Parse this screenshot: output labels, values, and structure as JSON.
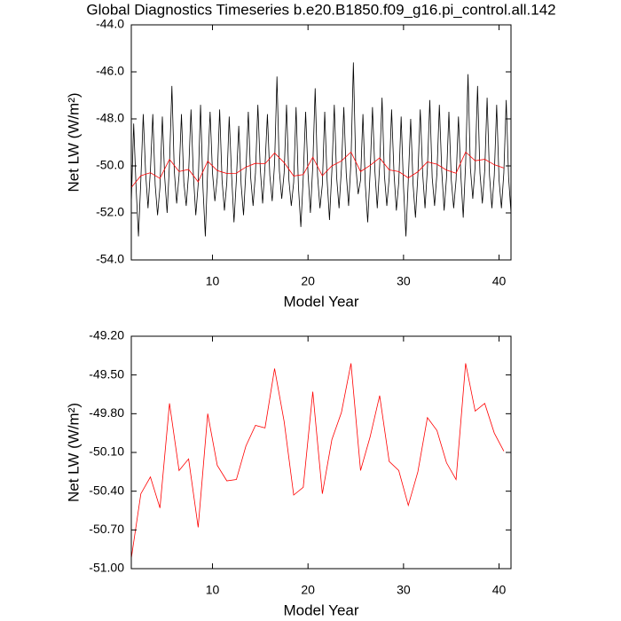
{
  "chart_data": [
    {
      "type": "line",
      "title": "Global Diagnostics Timeseries b.e20.B1850.f09_g16.pi_control.all.142",
      "xlabel": "Model Year",
      "ylabel": "Net LW (W/m²)",
      "xlim": [
        1.5,
        41.25
      ],
      "ylim": [
        -54,
        -44
      ],
      "xticks": [
        10,
        20,
        30,
        40
      ],
      "yticks": [
        {
          "value": -54,
          "label": "-54.0"
        },
        {
          "value": -52,
          "label": "-52.0"
        },
        {
          "value": -50,
          "label": "-50.0"
        },
        {
          "value": -48,
          "label": "-48.0"
        },
        {
          "value": -46,
          "label": "-46.0"
        },
        {
          "value": -44,
          "label": "-44.0"
        }
      ],
      "series": [
        {
          "color": "#000000",
          "x": [
            1.5,
            1.75,
            2,
            2.25,
            2.5,
            2.75,
            3,
            3.25,
            3.5,
            3.75,
            4,
            4.25,
            4.5,
            4.75,
            5,
            5.25,
            5.5,
            5.75,
            6,
            6.25,
            6.5,
            6.75,
            7,
            7.25,
            7.5,
            7.75,
            8,
            8.25,
            8.5,
            8.75,
            9,
            9.25,
            9.5,
            9.75,
            10,
            10.25,
            10.5,
            10.75,
            11,
            11.25,
            11.5,
            11.75,
            12,
            12.25,
            12.5,
            12.75,
            13,
            13.25,
            13.5,
            13.75,
            14,
            14.25,
            14.5,
            14.75,
            15,
            15.25,
            15.5,
            15.75,
            16,
            16.25,
            16.5,
            16.75,
            17,
            17.25,
            17.5,
            17.75,
            18,
            18.25,
            18.5,
            18.75,
            19,
            19.25,
            19.5,
            19.75,
            20,
            20.25,
            20.5,
            20.75,
            21,
            21.25,
            21.5,
            21.75,
            22,
            22.25,
            22.5,
            22.75,
            23,
            23.25,
            23.5,
            23.75,
            24,
            24.25,
            24.5,
            24.75,
            25,
            25.25,
            25.5,
            25.75,
            26,
            26.25,
            26.5,
            26.75,
            27,
            27.25,
            27.5,
            27.75,
            28,
            28.25,
            28.5,
            28.75,
            29,
            29.25,
            29.5,
            29.75,
            30,
            30.25,
            30.5,
            30.75,
            31,
            31.25,
            31.5,
            31.75,
            32,
            32.25,
            32.5,
            32.75,
            33,
            33.25,
            33.5,
            33.75,
            34,
            34.25,
            34.5,
            34.75,
            35,
            35.25,
            35.5,
            35.75,
            36,
            36.25,
            36.5,
            36.75,
            37,
            37.25,
            37.5,
            37.75,
            38,
            38.25,
            38.5,
            38.75,
            39,
            39.25,
            39.5,
            39.75,
            40,
            40.25,
            40.5,
            40.75,
            41,
            41.25
          ],
          "values": [
            -51.6,
            -48.2,
            -50.9,
            -53.0,
            -50.6,
            -47.8,
            -50.3,
            -51.8,
            -50.2,
            -47.8,
            -50.8,
            -52.1,
            -50.9,
            -47.9,
            -50.5,
            -52.0,
            -49.9,
            -46.6,
            -50.2,
            -51.6,
            -50.4,
            -47.8,
            -50.7,
            -51.7,
            -50.3,
            -47.6,
            -50.4,
            -52.1,
            -50.8,
            -47.4,
            -50.9,
            -53.0,
            -50.1,
            -47.7,
            -50.3,
            -51.5,
            -50.5,
            -47.6,
            -50.6,
            -51.9,
            -50.7,
            -47.9,
            -50.4,
            -52.4,
            -50.6,
            -48.3,
            -50.8,
            -52.1,
            -50.2,
            -47.7,
            -50.5,
            -51.7,
            -50.3,
            -47.4,
            -50.1,
            -51.6,
            -50.0,
            -47.8,
            -50.4,
            -51.5,
            -49.9,
            -46.2,
            -50.2,
            -51.4,
            -50.3,
            -47.4,
            -50.6,
            -51.7,
            -50.7,
            -47.5,
            -50.9,
            -52.6,
            -50.5,
            -47.7,
            -50.3,
            -52.0,
            -50.0,
            -46.7,
            -50.4,
            -51.8,
            -50.8,
            -47.7,
            -50.6,
            -52.3,
            -50.2,
            -47.4,
            -50.5,
            -51.8,
            -50.1,
            -47.5,
            -50.3,
            -51.7,
            -49.8,
            -45.6,
            -50.0,
            -51.2,
            -50.6,
            -47.8,
            -50.8,
            -52.4,
            -50.3,
            -47.5,
            -50.2,
            -51.8,
            -50.0,
            -47.1,
            -50.4,
            -51.7,
            -50.5,
            -47.6,
            -50.3,
            -51.9,
            -50.7,
            -47.9,
            -50.9,
            -53.0,
            -50.6,
            -48.0,
            -50.8,
            -52.2,
            -50.4,
            -47.6,
            -50.3,
            -51.8,
            -50.1,
            -47.2,
            -50.5,
            -51.7,
            -50.3,
            -47.4,
            -50.2,
            -51.9,
            -50.5,
            -47.7,
            -50.6,
            -51.8,
            -50.6,
            -47.9,
            -50.4,
            -52.2,
            -49.9,
            -46.1,
            -50.1,
            -51.4,
            -50.0,
            -46.6,
            -50.3,
            -51.6,
            -50.2,
            -47.1,
            -50.4,
            -51.8,
            -50.4,
            -47.4,
            -50.6,
            -51.8,
            -50.3,
            -47.2,
            -50.5,
            -52.0
          ]
        },
        {
          "color": "#ff0000",
          "x": [
            1.5,
            2.5,
            3.5,
            4.5,
            5.5,
            6.5,
            7.5,
            8.5,
            9.5,
            10.5,
            11.5,
            12.5,
            13.5,
            14.5,
            15.5,
            16.5,
            17.5,
            18.5,
            19.5,
            20.5,
            21.5,
            22.5,
            23.5,
            24.5,
            25.5,
            26.5,
            27.5,
            28.5,
            29.5,
            30.5,
            31.5,
            32.5,
            33.5,
            34.5,
            35.5,
            36.5,
            37.5,
            38.5,
            39.5,
            40.5
          ],
          "values": [
            -50.92,
            -50.42,
            -50.29,
            -50.53,
            -49.72,
            -50.24,
            -50.15,
            -50.68,
            -49.8,
            -50.2,
            -50.32,
            -50.31,
            -50.05,
            -49.89,
            -49.91,
            -49.45,
            -49.86,
            -50.43,
            -50.37,
            -49.63,
            -50.42,
            -50.0,
            -49.79,
            -49.41,
            -50.24,
            -49.98,
            -49.66,
            -50.17,
            -50.24,
            -50.51,
            -50.25,
            -49.83,
            -49.93,
            -50.18,
            -50.31,
            -49.41,
            -49.78,
            -49.72,
            -49.95,
            -50.09
          ]
        }
      ]
    },
    {
      "type": "line",
      "xlabel": "Model Year",
      "ylabel": "Net LW (W/m²)",
      "xlim": [
        1.5,
        41.25
      ],
      "ylim": [
        -51,
        -49.2
      ],
      "xticks": [
        10,
        20,
        30,
        40
      ],
      "yticks": [
        {
          "value": -51,
          "label": "-51.00"
        },
        {
          "value": -50.7,
          "label": "-50.70"
        },
        {
          "value": -50.4,
          "label": "-50.40"
        },
        {
          "value": -50.1,
          "label": "-50.10"
        },
        {
          "value": -49.8,
          "label": "-49.80"
        },
        {
          "value": -49.5,
          "label": "-49.50"
        },
        {
          "value": -49.2,
          "label": "-49.20"
        }
      ],
      "series": [
        {
          "color": "#ff0000",
          "x": [
            1.5,
            2.5,
            3.5,
            4.5,
            5.5,
            6.5,
            7.5,
            8.5,
            9.5,
            10.5,
            11.5,
            12.5,
            13.5,
            14.5,
            15.5,
            16.5,
            17.5,
            18.5,
            19.5,
            20.5,
            21.5,
            22.5,
            23.5,
            24.5,
            25.5,
            26.5,
            27.5,
            28.5,
            29.5,
            30.5,
            31.5,
            32.5,
            33.5,
            34.5,
            35.5,
            36.5,
            37.5,
            38.5,
            39.5,
            40.5
          ],
          "values": [
            -50.92,
            -50.42,
            -50.29,
            -50.53,
            -49.72,
            -50.24,
            -50.15,
            -50.68,
            -49.8,
            -50.2,
            -50.32,
            -50.31,
            -50.05,
            -49.89,
            -49.91,
            -49.45,
            -49.86,
            -50.43,
            -50.37,
            -49.63,
            -50.42,
            -50.0,
            -49.79,
            -49.41,
            -50.24,
            -49.98,
            -49.66,
            -50.17,
            -50.24,
            -50.51,
            -50.25,
            -49.83,
            -49.93,
            -50.18,
            -50.31,
            -49.41,
            -49.78,
            -49.72,
            -49.95,
            -50.09
          ]
        }
      ]
    }
  ]
}
